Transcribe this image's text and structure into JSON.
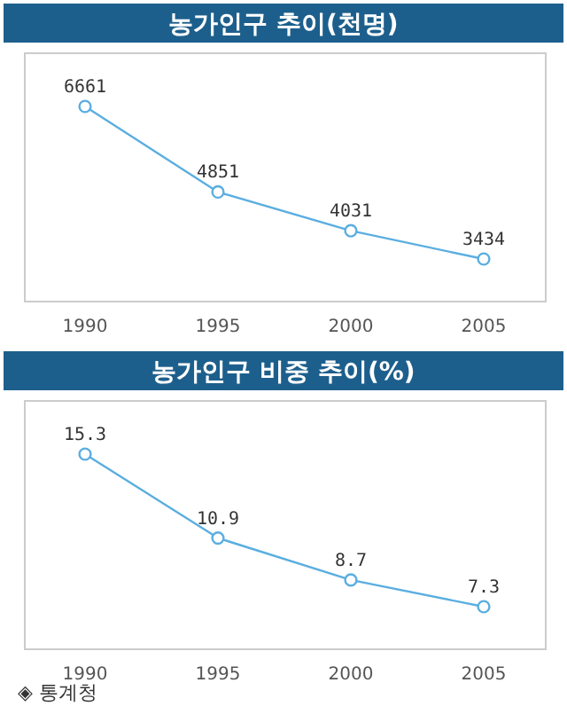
{
  "chart_data": [
    {
      "type": "line",
      "title": "농가인구 추이(천명)",
      "categories": [
        "1990",
        "1995",
        "2000",
        "2005"
      ],
      "series": [
        {
          "color": "#5aaee0",
          "values": [
            6661,
            4851,
            4031,
            3434
          ]
        }
      ],
      "data_labels": true,
      "marker": "circle",
      "line_style": "solid",
      "grid": false
    },
    {
      "type": "line",
      "title": "농가인구 비중 추이(%)",
      "categories": [
        "1990",
        "1995",
        "2000",
        "2005"
      ],
      "series": [
        {
          "color": "#5aaee0",
          "values": [
            15.3,
            10.9,
            8.7,
            7.3
          ]
        }
      ],
      "data_labels": true,
      "marker": "circle",
      "line_style": "solid",
      "grid": false,
      "annotations": [
        "◈ 통계청"
      ]
    }
  ]
}
